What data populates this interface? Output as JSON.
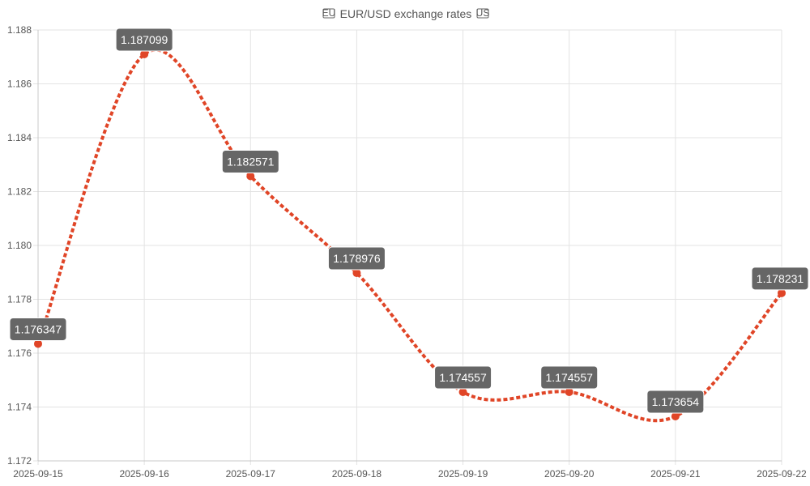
{
  "chart_data": {
    "type": "line",
    "title": "EUR/USD exchange rates",
    "title_flag_left": "EU",
    "title_flag_right": "US",
    "x": [
      "2025-09-15",
      "2025-09-16",
      "2025-09-17",
      "2025-09-18",
      "2025-09-19",
      "2025-09-20",
      "2025-09-21",
      "2025-09-22"
    ],
    "series": [
      {
        "values": [
          1.176347,
          1.187099,
          1.182571,
          1.178976,
          1.174557,
          1.174557,
          1.173654,
          1.178231
        ],
        "color": "#e04527"
      }
    ],
    "y_ticks": [
      "1.172",
      "1.174",
      "1.176",
      "1.178",
      "1.180",
      "1.182",
      "1.184",
      "1.186",
      "1.188"
    ],
    "ylim": [
      1.172,
      1.188
    ],
    "line_style": "dotted",
    "smooth": true,
    "grid": true,
    "data_labels": true,
    "label_bg_color": "#666666",
    "label_text_color": "#ffffff"
  }
}
